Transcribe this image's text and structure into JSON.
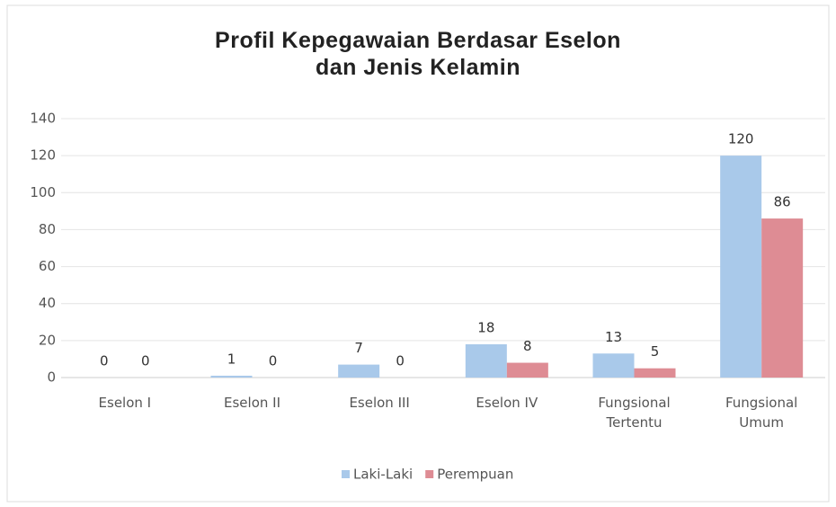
{
  "chart_data": {
    "type": "bar",
    "title": "Profil Kepegawaian Berdasar Eselon dan Jenis Kelamin",
    "categories": [
      "Eselon I",
      "Eselon II",
      "Eselon III",
      "Eselon IV",
      "Fungsional Tertentu",
      "Fungsional Umum"
    ],
    "series": [
      {
        "name": "Laki-Laki",
        "color": "#a9c9ea",
        "values": [
          0,
          1,
          7,
          18,
          13,
          120
        ]
      },
      {
        "name": "Perempuan",
        "color": "#de8c94",
        "values": [
          0,
          0,
          0,
          8,
          5,
          86
        ]
      }
    ],
    "ylim": [
      0,
      140
    ],
    "yticks": [
      0,
      20,
      40,
      60,
      80,
      100,
      120,
      140
    ],
    "grid": true,
    "legend": "bottom"
  }
}
